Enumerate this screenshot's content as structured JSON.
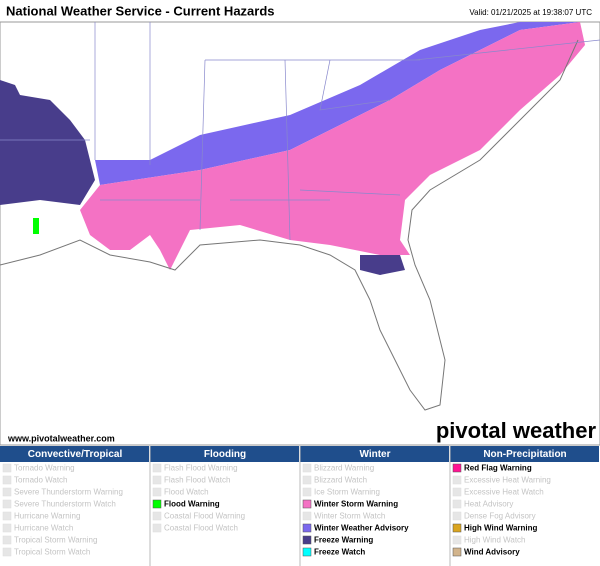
{
  "header": {
    "title": "National Weather Service - Current Hazards",
    "valid": "Valid: 01/21/2025 at 19:38:07 UTC"
  },
  "map": {
    "website": "www.pivotalweather.com",
    "logo": "pivotal weather"
  },
  "legend": {
    "columns": [
      {
        "title": "Convective/Tropical",
        "items": [
          {
            "label": "Tornado Warning",
            "active": false
          },
          {
            "label": "Tornado Watch",
            "active": false
          },
          {
            "label": "Severe Thunderstorm Warning",
            "active": false
          },
          {
            "label": "Severe Thunderstorm Watch",
            "active": false
          },
          {
            "label": "Hurricane Warning",
            "active": false
          },
          {
            "label": "Hurricane Watch",
            "active": false
          },
          {
            "label": "Tropical Storm Warning",
            "active": false
          },
          {
            "label": "Tropical Storm Watch",
            "active": false
          }
        ]
      },
      {
        "title": "Flooding",
        "items": [
          {
            "label": "Flash Flood Warning",
            "active": false
          },
          {
            "label": "Flash Flood Watch",
            "active": false
          },
          {
            "label": "Flood Watch",
            "active": false
          },
          {
            "label": "Flood Warning",
            "active": true,
            "color": "#00ff00"
          },
          {
            "label": "Coastal Flood Warning",
            "active": false
          },
          {
            "label": "Coastal Flood Watch",
            "active": false
          }
        ]
      },
      {
        "title": "Winter",
        "items": [
          {
            "label": "Blizzard Warning",
            "active": false
          },
          {
            "label": "Blizzard Watch",
            "active": false
          },
          {
            "label": "Ice Storm Warning",
            "active": false
          },
          {
            "label": "Winter Storm Warning",
            "active": true,
            "color": "#f472c4"
          },
          {
            "label": "Winter Storm Watch",
            "active": false
          },
          {
            "label": "Winter Weather Advisory",
            "active": true,
            "color": "#7b68ee"
          },
          {
            "label": "Freeze Warning",
            "active": true,
            "color": "#483d8b"
          },
          {
            "label": "Freeze Watch",
            "active": true,
            "color": "#00ffff"
          }
        ]
      },
      {
        "title": "Non-Precipitation",
        "items": [
          {
            "label": "Red Flag Warning",
            "active": true,
            "color": "#ff1493"
          },
          {
            "label": "Excessive Heat Warning",
            "active": false
          },
          {
            "label": "Excessive Heat Watch",
            "active": false
          },
          {
            "label": "Heat Advisory",
            "active": false
          },
          {
            "label": "Dense Fog Advisory",
            "active": false
          },
          {
            "label": "High Wind Warning",
            "active": true,
            "color": "#daa520"
          },
          {
            "label": "High Wind Watch",
            "active": false
          },
          {
            "label": "Wind Advisory",
            "active": true,
            "color": "#d2b48c"
          }
        ]
      }
    ]
  }
}
